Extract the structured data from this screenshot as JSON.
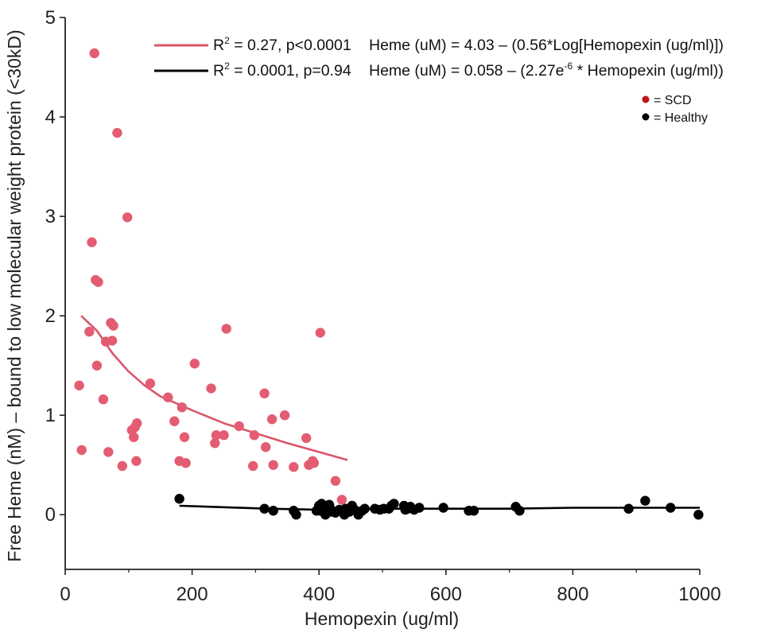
{
  "chart_data": {
    "type": "scatter",
    "xlabel": "Hemopexin (ug/ml)",
    "ylabel": "Free Heme (nM) – bound to low molecular weight protein (<30kD)",
    "xlim": [
      0,
      1000
    ],
    "ylim": [
      -0.55,
      5
    ],
    "xticks": [
      "0",
      "200",
      "400",
      "600",
      "800",
      "1000"
    ],
    "yticks": [
      "0",
      "1",
      "2",
      "3",
      "4",
      "5"
    ],
    "grid": false,
    "legend_position": "top-right",
    "key": [
      {
        "label": "= SCD",
        "color": "#c0151c"
      },
      {
        "label": "= Healthy",
        "color": "#000000"
      }
    ],
    "fits": [
      {
        "name": "SCD",
        "color": "#d9566b",
        "stat_main": "R",
        "stat_sup": "2",
        "stat_rest": " = 0.27, p<0.0001",
        "equation": "Heme (uM) = 4.03 – (0.56*Log[Hemopexin (ug/ml)])",
        "x": [
          25,
          50,
          75,
          100,
          125,
          150,
          200,
          250,
          300,
          350,
          400,
          445
        ],
        "y": [
          2.0,
          1.85,
          1.62,
          1.44,
          1.3,
          1.19,
          1.05,
          0.92,
          0.82,
          0.72,
          0.63,
          0.55
        ]
      },
      {
        "name": "Healthy",
        "color": "#000000",
        "stat_main": "R",
        "stat_sup": "2",
        "stat_rest": " = 0.0001, p=0.94",
        "equation_pre": "Heme (uM) = 0.058 – (2.27e",
        "equation_sup": "-6",
        "equation_post": " * Hemopexin (ug/ml))",
        "x": [
          180,
          320,
          400,
          500,
          600,
          700,
          800,
          900,
          1000
        ],
        "y": [
          0.09,
          0.06,
          0.05,
          0.06,
          0.06,
          0.06,
          0.07,
          0.07,
          0.07
        ]
      }
    ],
    "series": [
      {
        "name": "SCD",
        "color": "#e35c72",
        "points": [
          [
            46,
            4.64
          ],
          [
            82,
            3.84
          ],
          [
            98,
            2.99
          ],
          [
            42,
            2.74
          ],
          [
            48,
            2.36
          ],
          [
            52,
            2.34
          ],
          [
            72,
            1.93
          ],
          [
            76,
            1.9
          ],
          [
            38,
            1.84
          ],
          [
            64,
            1.74
          ],
          [
            74,
            1.75
          ],
          [
            50,
            1.5
          ],
          [
            22,
            1.3
          ],
          [
            60,
            1.16
          ],
          [
            105,
            0.85
          ],
          [
            110,
            0.88
          ],
          [
            113,
            0.92
          ],
          [
            108,
            0.78
          ],
          [
            26,
            0.65
          ],
          [
            68,
            0.63
          ],
          [
            112,
            0.54
          ],
          [
            90,
            0.49
          ],
          [
            134,
            1.32
          ],
          [
            162,
            1.18
          ],
          [
            172,
            0.94
          ],
          [
            184,
            1.08
          ],
          [
            188,
            0.78
          ],
          [
            180,
            0.54
          ],
          [
            190,
            0.52
          ],
          [
            204,
            1.52
          ],
          [
            230,
            1.27
          ],
          [
            238,
            0.8
          ],
          [
            236,
            0.72
          ],
          [
            250,
            0.8
          ],
          [
            254,
            1.87
          ],
          [
            274,
            0.89
          ],
          [
            298,
            0.8
          ],
          [
            296,
            0.49
          ],
          [
            314,
            1.22
          ],
          [
            316,
            0.68
          ],
          [
            326,
            0.96
          ],
          [
            328,
            0.5
          ],
          [
            346,
            1.0
          ],
          [
            360,
            0.48
          ],
          [
            380,
            0.77
          ],
          [
            384,
            0.5
          ],
          [
            390,
            0.54
          ],
          [
            392,
            0.52
          ],
          [
            402,
            1.83
          ],
          [
            426,
            0.34
          ],
          [
            436,
            0.15
          ]
        ]
      },
      {
        "name": "Healthy",
        "color": "#000000",
        "points": [
          [
            180,
            0.16
          ],
          [
            314,
            0.06
          ],
          [
            328,
            0.04
          ],
          [
            360,
            0.04
          ],
          [
            364,
            0.0
          ],
          [
            396,
            0.04
          ],
          [
            400,
            0.09
          ],
          [
            402,
            0.04
          ],
          [
            404,
            0.11
          ],
          [
            408,
            0.06
          ],
          [
            410,
            0.0
          ],
          [
            412,
            0.08
          ],
          [
            416,
            0.1
          ],
          [
            418,
            0.06
          ],
          [
            420,
            0.03
          ],
          [
            426,
            0.02
          ],
          [
            432,
            0.05
          ],
          [
            440,
            0.0
          ],
          [
            442,
            0.06
          ],
          [
            448,
            0.03
          ],
          [
            452,
            0.09
          ],
          [
            456,
            0.05
          ],
          [
            462,
            0.0
          ],
          [
            468,
            0.04
          ],
          [
            472,
            0.06
          ],
          [
            488,
            0.06
          ],
          [
            496,
            0.05
          ],
          [
            502,
            0.06
          ],
          [
            510,
            0.06
          ],
          [
            514,
            0.09
          ],
          [
            518,
            0.11
          ],
          [
            534,
            0.09
          ],
          [
            536,
            0.05
          ],
          [
            540,
            0.06
          ],
          [
            544,
            0.08
          ],
          [
            550,
            0.05
          ],
          [
            558,
            0.07
          ],
          [
            596,
            0.07
          ],
          [
            636,
            0.04
          ],
          [
            644,
            0.04
          ],
          [
            710,
            0.08
          ],
          [
            716,
            0.04
          ],
          [
            888,
            0.06
          ],
          [
            914,
            0.14
          ],
          [
            954,
            0.07
          ],
          [
            998,
            0.0
          ]
        ]
      }
    ]
  }
}
